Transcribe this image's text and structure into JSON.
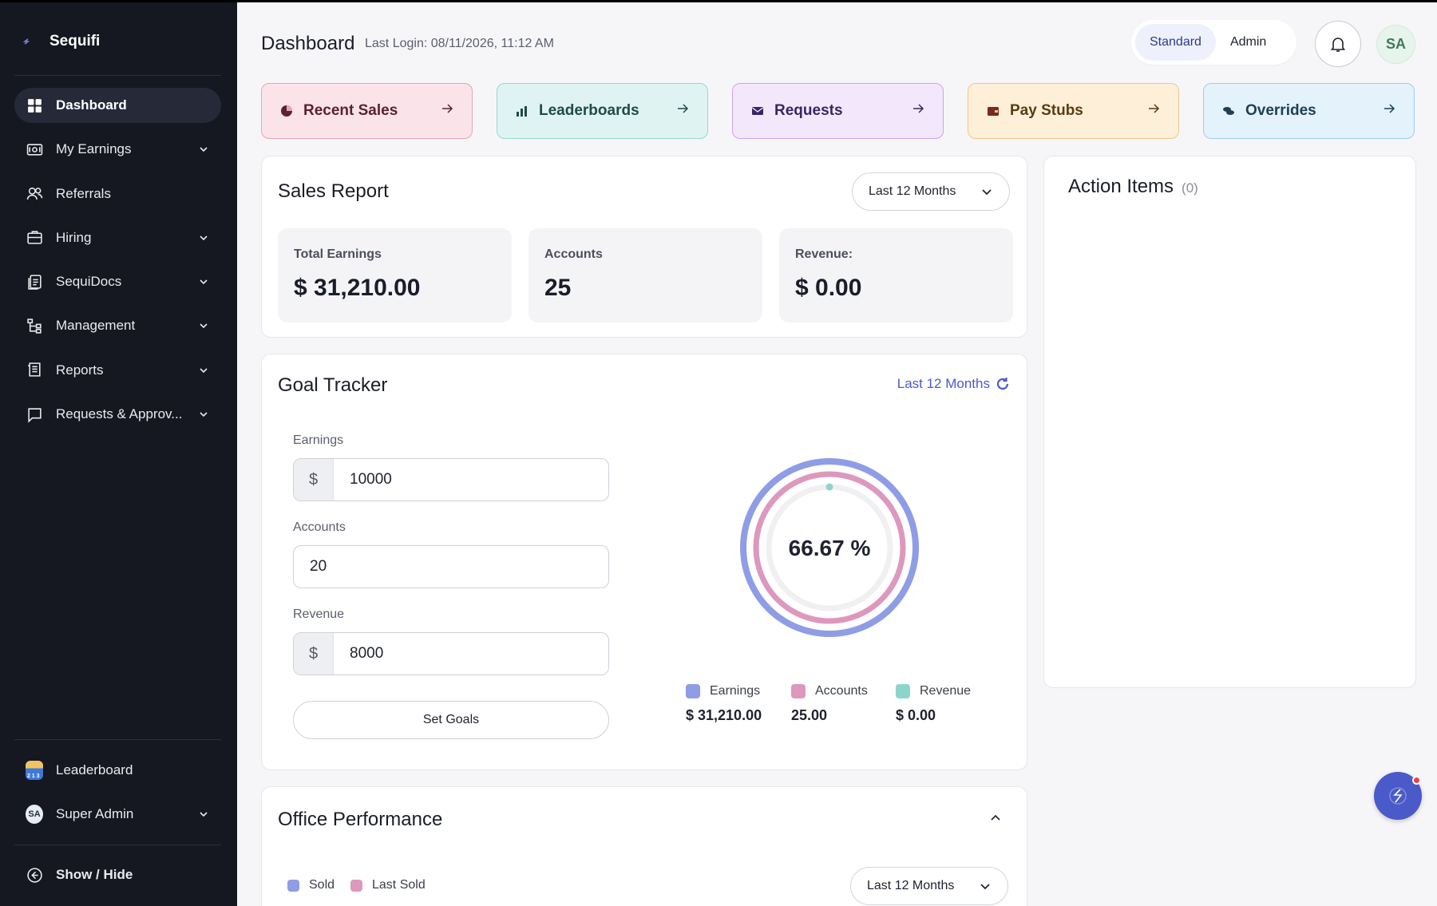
{
  "brand": {
    "name": "Sequifi"
  },
  "sidebar": {
    "items": [
      {
        "label": "Dashboard",
        "icon": "grid-icon",
        "active": true
      },
      {
        "label": "My Earnings",
        "icon": "wallet-icon"
      },
      {
        "label": "Referrals",
        "icon": "users-icon"
      },
      {
        "label": "Hiring",
        "icon": "briefcase-icon"
      },
      {
        "label": "SequiDocs",
        "icon": "document-icon"
      },
      {
        "label": "Management",
        "icon": "hierarchy-icon"
      },
      {
        "label": "Reports",
        "icon": "report-icon"
      },
      {
        "label": "Requests & Approv...",
        "icon": "request-icon"
      }
    ],
    "leaderboard_label": "Leaderboard",
    "user_label": "Super Admin",
    "user_initials": "SA",
    "show_hide_label": "Show / Hide"
  },
  "header": {
    "title": "Dashboard",
    "last_login": "Last Login: 08/11/2026, 11:12 AM",
    "role_standard": "Standard",
    "role_admin": "Admin",
    "avatar_initials": "SA"
  },
  "quick_links": [
    {
      "label": "Recent Sales",
      "bg": "#fbe3ea",
      "border": "#e8a4b8",
      "color": "#5a2233",
      "icon": "pie-icon"
    },
    {
      "label": "Leaderboards",
      "bg": "#dff4f2",
      "border": "#97d8d0",
      "color": "#1f4b48",
      "icon": "bar-chart-icon"
    },
    {
      "label": "Requests",
      "bg": "#f3e8fb",
      "border": "#c6a6ea",
      "color": "#3a2661",
      "icon": "mail-icon"
    },
    {
      "label": "Pay Stubs",
      "bg": "#fdefd8",
      "border": "#f0c98b",
      "color": "#5a3c12",
      "icon": "wallet-icon"
    },
    {
      "label": "Overrides",
      "bg": "#e3f2fb",
      "border": "#9fcde8",
      "color": "#1e3f55",
      "icon": "coins-icon"
    }
  ],
  "sales_report": {
    "title": "Sales Report",
    "period": "Last 12 Months",
    "stats": [
      {
        "label": "Total Earnings",
        "value": "$ 31,210.00"
      },
      {
        "label": "Accounts",
        "value": "25"
      },
      {
        "label": "Revenue:",
        "value": "$ 0.00"
      }
    ]
  },
  "goal_tracker": {
    "title": "Goal Tracker",
    "period": "Last 12 Months",
    "fields": {
      "earnings_label": "Earnings",
      "earnings_prefix": "$",
      "earnings_value": "10000",
      "accounts_label": "Accounts",
      "accounts_value": "20",
      "revenue_label": "Revenue",
      "revenue_prefix": "$",
      "revenue_value": "8000"
    },
    "set_goals_label": "Set Goals",
    "center_label": "66.67 %",
    "legend": [
      {
        "name": "Earnings",
        "value": "$ 31,210.00",
        "color": "#8f9ce6"
      },
      {
        "name": "Accounts",
        "value": "25.00",
        "color": "#dd98bd"
      },
      {
        "name": "Revenue",
        "value": "$ 0.00",
        "color": "#8dd5cb"
      }
    ]
  },
  "chart_data": {
    "type": "radial-progress",
    "center_text": "66.67 %",
    "series": [
      {
        "name": "Earnings",
        "value": 31210,
        "goal": 10000,
        "progress": 1.0
      },
      {
        "name": "Accounts",
        "value": 25,
        "goal": 20,
        "progress": 1.0
      },
      {
        "name": "Revenue",
        "value": 0,
        "goal": 8000,
        "progress": 0.0
      }
    ]
  },
  "action_items": {
    "title": "Action Items",
    "count": "(0)"
  },
  "office_performance": {
    "title": "Office Performance",
    "legend_sold": "Sold",
    "legend_last_sold": "Last Sold",
    "period": "Last 12 Months"
  },
  "colors": {
    "sidebar_bg": "#151821",
    "accent": "#4a5ac9",
    "link_blue": "#4a5ac9"
  }
}
